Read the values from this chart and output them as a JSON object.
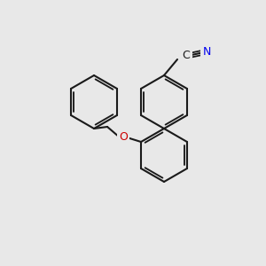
{
  "background_color": "#e8e8e8",
  "bond_color": "#1a1a1a",
  "lw": 1.5,
  "N_color": "#0000ee",
  "O_color": "#cc0000",
  "C_color": "#1a1a1a",
  "font_size": 9,
  "xlim": [
    0,
    300
  ],
  "ylim": [
    0,
    300
  ]
}
